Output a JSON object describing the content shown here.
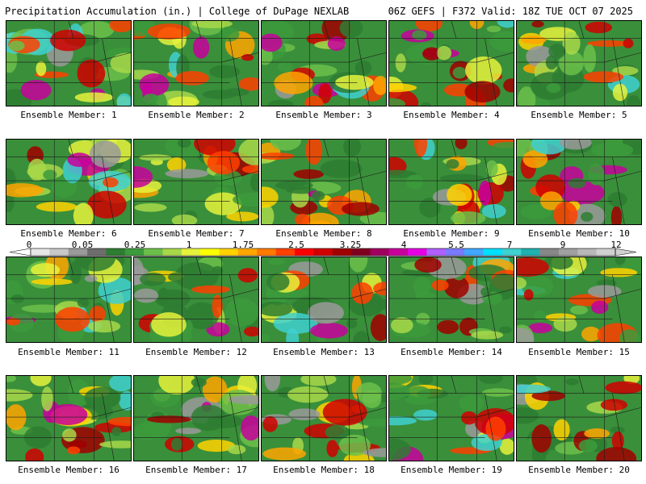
{
  "header": {
    "left": "Precipitation Accumulation (in.) | College of DuPage NEXLAB",
    "right": "06Z GEFS | F372 Valid: 18Z TUE OCT 07 2025"
  },
  "members": [
    {
      "label": "Ensemble Member: 1"
    },
    {
      "label": "Ensemble Member: 2"
    },
    {
      "label": "Ensemble Member: 3"
    },
    {
      "label": "Ensemble Member: 4"
    },
    {
      "label": "Ensemble Member: 5"
    },
    {
      "label": "Ensemble Member: 6"
    },
    {
      "label": "Ensemble Member: 7"
    },
    {
      "label": "Ensemble Member: 8"
    },
    {
      "label": "Ensemble Member: 9"
    },
    {
      "label": "Ensemble Member: 10"
    },
    {
      "label": "Ensemble Member: 11"
    },
    {
      "label": "Ensemble Member: 12"
    },
    {
      "label": "Ensemble Member: 13"
    },
    {
      "label": "Ensemble Member: 14"
    },
    {
      "label": "Ensemble Member: 15"
    },
    {
      "label": "Ensemble Member: 16"
    },
    {
      "label": "Ensemble Member: 17"
    },
    {
      "label": "Ensemble Member: 18"
    },
    {
      "label": "Ensemble Member: 19"
    },
    {
      "label": "Ensemble Member: 20"
    }
  ],
  "colorbar": {
    "tick_labels": [
      "0",
      "0.05",
      "0.25",
      "1",
      "1.75",
      "2.5",
      "3.25",
      "4",
      "5.5",
      "7",
      "9",
      "12"
    ],
    "colors": [
      "#e6e6e6",
      "#c8c8c8",
      "#9a9a9a",
      "#6e6e6e",
      "#2e7d32",
      "#3c9b3c",
      "#6cc04a",
      "#a8d84a",
      "#e6f23c",
      "#ffff00",
      "#ffd200",
      "#ffa500",
      "#ff7a00",
      "#ff4000",
      "#ff0000",
      "#d00000",
      "#a00000",
      "#800020",
      "#a00060",
      "#c8009c",
      "#e600e6",
      "#b060ff",
      "#7a7aff",
      "#40a8ff",
      "#00e0ff",
      "#40d0d0",
      "#20b0b0",
      "#888888",
      "#a0a0a0",
      "#b8b8b8",
      "#d0d0d0"
    ]
  }
}
